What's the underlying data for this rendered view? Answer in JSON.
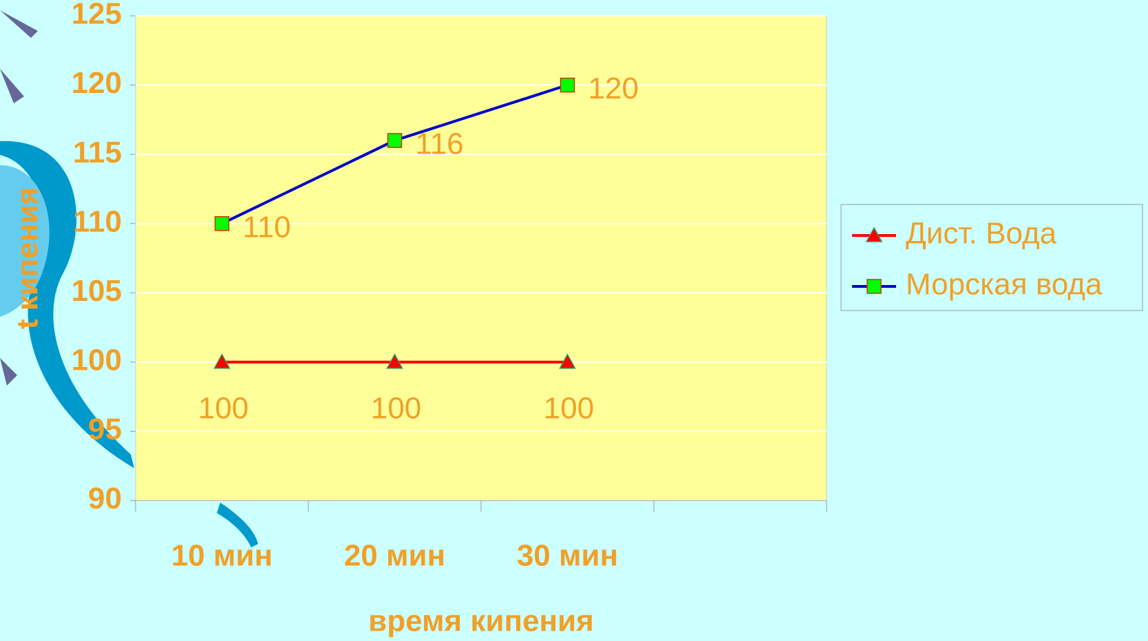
{
  "chart_data": {
    "type": "line",
    "x_label": "время кипения",
    "y_label": "t кипения",
    "categories": [
      "10 мин",
      "20 мин",
      "30 мин",
      null
    ],
    "series": [
      {
        "name": "Дист. Вода",
        "color": "#ff0000",
        "marker": "triangle",
        "marker_color": "#ff0000",
        "values": [
          100,
          100,
          100,
          null
        ]
      },
      {
        "name": "Морская вода",
        "color": "#0000cc",
        "marker": "square",
        "marker_color": "#00ff00",
        "values": [
          110,
          116,
          120,
          null
        ]
      }
    ],
    "ylim": [
      90,
      125
    ],
    "yticks": [
      90,
      95,
      100,
      105,
      110,
      115,
      120,
      125
    ],
    "grid": true,
    "legend": "right"
  }
}
